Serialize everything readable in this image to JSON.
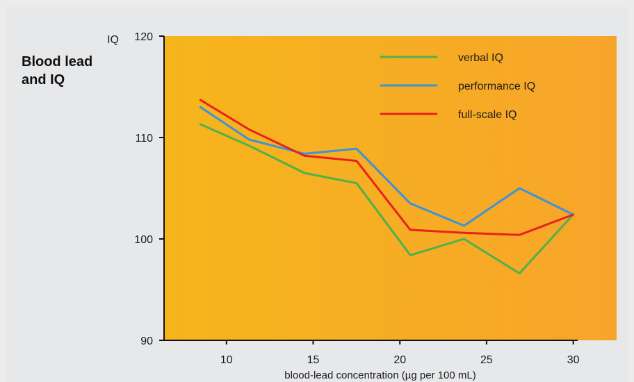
{
  "title_lines": [
    "Blood lead",
    "and IQ"
  ],
  "chart_data": {
    "type": "line",
    "title": "Blood lead and IQ",
    "xlabel": "blood-lead concentration (µg per 100 mL)",
    "ylabel": "IQ",
    "xlim": [
      6.4,
      32.5
    ],
    "ylim": [
      90,
      120
    ],
    "x_ticks": [
      10,
      15,
      20,
      25,
      30
    ],
    "y_ticks": [
      90,
      100,
      110,
      120
    ],
    "grid": false,
    "legend_position": "top-right",
    "x": [
      8.5,
      11.3,
      14.5,
      17.5,
      20.6,
      23.7,
      26.9,
      30
    ],
    "series": [
      {
        "name": "verbal IQ",
        "color": "#4fb14b",
        "values": [
          111.3,
          109.2,
          106.5,
          105.5,
          98.4,
          100.0,
          96.6,
          102.4
        ]
      },
      {
        "name": "performance IQ",
        "color": "#3c93d8",
        "values": [
          113.0,
          109.8,
          108.4,
          108.9,
          103.5,
          101.3,
          105.0,
          102.4
        ]
      },
      {
        "name": "full-scale IQ",
        "color": "#e8211c",
        "values": [
          113.7,
          110.8,
          108.2,
          107.7,
          100.9,
          100.6,
          100.4,
          102.4
        ]
      }
    ],
    "colors": {
      "plot_bg_left": "#f6b51c",
      "plot_bg_right": "#f7a52a",
      "axis": "#111111",
      "text": "#1b1b1b"
    }
  }
}
